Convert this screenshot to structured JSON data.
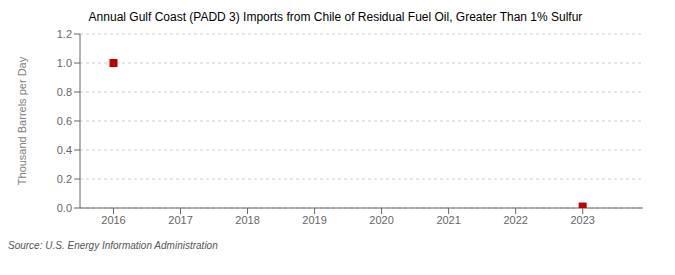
{
  "chart_data": {
    "type": "scatter",
    "title": "Annual Gulf Coast (PADD 3) Imports from Chile of Residual Fuel Oil, Greater Than 1% Sulfur",
    "ylabel": "Thousand Barrels per Day",
    "annotations": [
      "Source: U.S. Energy Information Administration"
    ],
    "x": [
      2016,
      2023
    ],
    "values": [
      1.0,
      0.01
    ],
    "color": "#c00000",
    "marker": "square",
    "xlim": [
      2015.5,
      2023.9
    ],
    "xticks": [
      2016,
      2017,
      2018,
      2019,
      2020,
      2021,
      2022,
      2023
    ],
    "ylim": [
      0.0,
      1.2
    ],
    "yticks": [
      {
        "value": 0.0,
        "label": "0.0"
      },
      0.2,
      0.4,
      0.6,
      0.8,
      {
        "value": 1.0,
        "label": "1.0"
      },
      1.2
    ],
    "grid": "y"
  }
}
